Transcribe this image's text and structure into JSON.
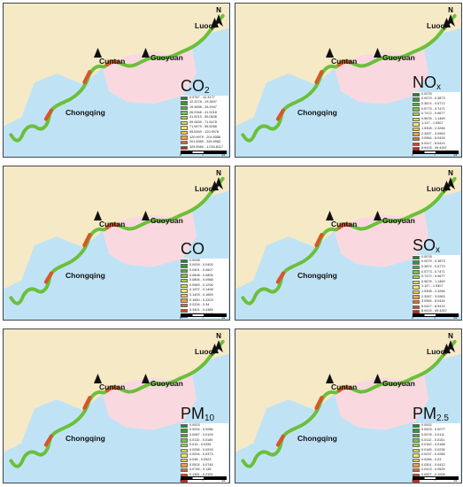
{
  "panels": [
    {
      "pollutant": "CO2",
      "pollutant_base": "CO",
      "pollutant_sub": "2",
      "labels": {
        "luoqi": "Luoqi",
        "cuntan": "Cuntan",
        "guoyuan": "Guoyuan",
        "chongqing": "Chongqing"
      },
      "north": "N",
      "legend": [
        {
          "range": "0.0767 - 12.3177",
          "color": "#1a8a2a"
        },
        {
          "range": "12.3178 - 19.3697",
          "color": "#2f9e2f"
        },
        {
          "range": "19.3698 - 26.2947",
          "color": "#4cb23a"
        },
        {
          "range": "26.2948 - 41.9218",
          "color": "#74c44a"
        },
        {
          "range": "41.9219 - 59.0638",
          "color": "#a2d452"
        },
        {
          "range": "59.0639 - 71.5478",
          "color": "#cde25a"
        },
        {
          "range": "71.5479 - 95.5268",
          "color": "#efe85e"
        },
        {
          "range": "95.5269 - 120.9978",
          "color": "#f5c84a"
        },
        {
          "range": "120.9979 - 201.8358",
          "color": "#f0a03a"
        },
        {
          "range": "201.8359 - 329.5983",
          "color": "#e46a2c"
        },
        {
          "range": "329.5984 - 1,034.8117",
          "color": "#c8241e"
        }
      ],
      "scale": {
        "zero": "0",
        "mid": "7",
        "end": "14 km"
      }
    },
    {
      "pollutant": "NOx",
      "pollutant_base": "NO",
      "pollutant_sub": "x",
      "labels": {
        "luoqi": "Luoqi",
        "cuntan": "Cuntan",
        "guoyuan": "Guoyuan",
        "chongqing": "Chongqing"
      },
      "north": "N",
      "legend": [
        {
          "range": "0.0078",
          "color": "#1a8a2a"
        },
        {
          "range": "0.0079 - 0.3873",
          "color": "#2f9e2f"
        },
        {
          "range": "0.3874 - 0.5772",
          "color": "#4cb23a"
        },
        {
          "range": "0.5773 - 0.7471",
          "color": "#74c44a"
        },
        {
          "range": "0.7472 - 0.9677",
          "color": "#a2d452"
        },
        {
          "range": "0.9678 - 1.1469",
          "color": "#cde25a"
        },
        {
          "range": "1.147 - 1.5307",
          "color": "#efe85e"
        },
        {
          "range": "1.5308 - 2.3266",
          "color": "#f5c84a"
        },
        {
          "range": "2.3267 - 3.0963",
          "color": "#f0a03a"
        },
        {
          "range": "3.0964 - 5.0416",
          "color": "#e46a2c"
        },
        {
          "range": "5.0417 - 8.9414",
          "color": "#d44a26"
        },
        {
          "range": "8.9415 - 49.4267",
          "color": "#c8241e"
        }
      ],
      "scale": {
        "zero": "0",
        "mid": "7",
        "end": "14 km"
      }
    },
    {
      "pollutant": "CO",
      "pollutant_base": "CO",
      "pollutant_sub": "",
      "labels": {
        "luoqi": "Luoqi",
        "cuntan": "Cuntan",
        "guoyuan": "Guoyuan",
        "chongqing": "Chongqing"
      },
      "north": "N",
      "legend": [
        {
          "range": "0.0008",
          "color": "#1a8a2a"
        },
        {
          "range": "0.0009 - 0.0400",
          "color": "#2f9e2f"
        },
        {
          "range": "0.0401 - 0.0607",
          "color": "#4cb23a"
        },
        {
          "range": "0.0608 - 0.0805",
          "color": "#74c44a"
        },
        {
          "range": "0.0806 - 0.0968",
          "color": "#a2d452"
        },
        {
          "range": "0.0969 - 0.1206",
          "color": "#cde25a"
        },
        {
          "range": "0.1207 - 0.1408",
          "color": "#efe85e"
        },
        {
          "range": "0.1409 - 0.1659",
          "color": "#f5c84a"
        },
        {
          "range": "0.1660 - 0.2203",
          "color": "#f0a03a"
        },
        {
          "range": "0.2204 - 0.34",
          "color": "#e46a2c"
        },
        {
          "range": "0.3401 - 0.4385",
          "color": "#d44a26"
        },
        {
          "range": "0.4386 - 0.8443",
          "color": "#c8241e"
        }
      ],
      "scale": {
        "zero": "0",
        "mid": "7",
        "end": "14 km"
      }
    },
    {
      "pollutant": "SOx",
      "pollutant_base": "SO",
      "pollutant_sub": "x",
      "labels": {
        "luoqi": "Luoqi",
        "cuntan": "Cuntan",
        "guoyuan": "Guoyuan",
        "chongqing": "Chongqing"
      },
      "north": "N",
      "legend": [
        {
          "range": "0.0078",
          "color": "#1a8a2a"
        },
        {
          "range": "0.0079 - 0.3873",
          "color": "#2f9e2f"
        },
        {
          "range": "0.3874 - 0.5772",
          "color": "#4cb23a"
        },
        {
          "range": "0.5773 - 0.7471",
          "color": "#74c44a"
        },
        {
          "range": "0.7472 - 0.9677",
          "color": "#a2d452"
        },
        {
          "range": "0.9678 - 1.1469",
          "color": "#cde25a"
        },
        {
          "range": "1.147 - 1.5307",
          "color": "#efe85e"
        },
        {
          "range": "1.5308 - 2.3266",
          "color": "#f5c84a"
        },
        {
          "range": "2.3267 - 3.0963",
          "color": "#f0a03a"
        },
        {
          "range": "3.0964 - 5.0416",
          "color": "#e46a2c"
        },
        {
          "range": "5.0417 - 8.9414",
          "color": "#d44a26"
        },
        {
          "range": "8.9415 - 49.4267",
          "color": "#c8241e"
        }
      ],
      "scale": {
        "zero": "0",
        "mid": "7",
        "end": "14 km"
      }
    },
    {
      "pollutant": "PM10",
      "pollutant_base": "PM",
      "pollutant_sub": "10",
      "labels": {
        "luoqi": "Luoqi",
        "cuntan": "Cuntan",
        "guoyuan": "Guoyuan",
        "chongqing": "Chongqing"
      },
      "north": "N",
      "legend": [
        {
          "range": "0.0003",
          "color": "#1a8a2a"
        },
        {
          "range": "0.0004 - 0.0086",
          "color": "#2f9e2f"
        },
        {
          "range": "0.0087 - 0.0109",
          "color": "#4cb23a"
        },
        {
          "range": "0.0110 - 0.0189",
          "color": "#74c44a"
        },
        {
          "range": "0.019 - 0.0255",
          "color": "#a2d452"
        },
        {
          "range": "0.0256 - 0.0293",
          "color": "#cde25a"
        },
        {
          "range": "0.0294 - 0.0373",
          "color": "#efe85e"
        },
        {
          "range": "0.038 - 0.0523",
          "color": "#f5c84a"
        },
        {
          "range": "0.0524 - 0.0745",
          "color": "#f0a03a"
        },
        {
          "range": "0.0746 - 0.136",
          "color": "#e46a2c"
        },
        {
          "range": "0.1361 - 0.2151",
          "color": "#d44a26"
        },
        {
          "range": "0.2152 - 1.1931",
          "color": "#c8241e"
        }
      ],
      "scale": {
        "zero": "0",
        "mid": "7",
        "end": "14 km"
      }
    },
    {
      "pollutant": "PM2.5",
      "pollutant_base": "PM",
      "pollutant_sub": "2.5",
      "labels": {
        "luoqi": "Luoqi",
        "cuntan": "Cuntan",
        "guoyuan": "Guoyuan",
        "chongqing": "Chongqing"
      },
      "north": "N",
      "legend": [
        {
          "range": "0.0002",
          "color": "#1a8a2a"
        },
        {
          "range": "0.0003 - 0.0077",
          "color": "#2f9e2f"
        },
        {
          "range": "0.0078 - 0.0111",
          "color": "#4cb23a"
        },
        {
          "range": "0.0112 - 0.0151",
          "color": "#74c44a"
        },
        {
          "range": "0.0152 - 0.0188",
          "color": "#a2d452"
        },
        {
          "range": "0.0189 - 0.0236",
          "color": "#cde25a"
        },
        {
          "range": "0.0237 - 0.0285",
          "color": "#efe85e"
        },
        {
          "range": "0.0286 - 0.03",
          "color": "#f5c84a"
        },
        {
          "range": "0.0301 - 0.0412",
          "color": "#f0a03a"
        },
        {
          "range": "0.0413 - 0.0626",
          "color": "#e46a2c"
        },
        {
          "range": "0.0627 - 0.1008",
          "color": "#d44a26"
        },
        {
          "range": "0.1009 - 0.9593",
          "color": "#c8241e"
        }
      ],
      "scale": {
        "zero": "0",
        "mid": "7",
        "end": "14 km"
      }
    }
  ],
  "colors": {
    "water": "#bfe3f5",
    "land_north": "#f6e9c6",
    "land_south": "#f9d9df",
    "river": "#6cbf3a",
    "border": "#444444"
  }
}
